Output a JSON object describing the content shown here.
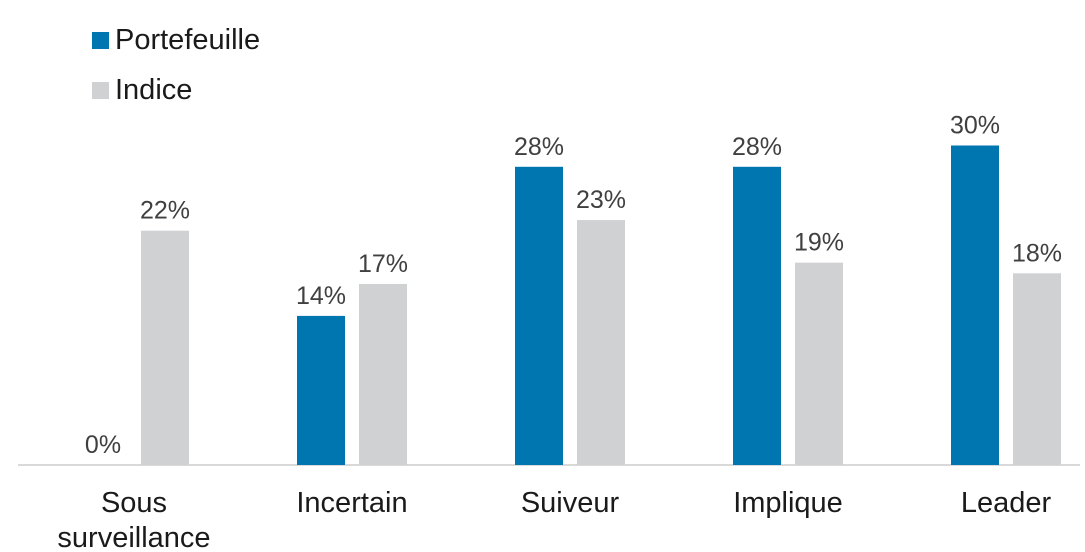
{
  "chart_data": {
    "type": "bar",
    "categories": [
      [
        "Sous",
        "surveillance"
      ],
      [
        "Incertain"
      ],
      [
        "Suiveur"
      ],
      [
        "Implique"
      ],
      [
        "Leader"
      ]
    ],
    "series": [
      {
        "name": "Portefeuille",
        "color": "#0076B1",
        "values": [
          0,
          14,
          28,
          28,
          30
        ],
        "labels": [
          "0%",
          "14%",
          "28%",
          "28%",
          "30%"
        ]
      },
      {
        "name": "Indice",
        "color": "#D0D1D3",
        "values": [
          22,
          17,
          23,
          19,
          18
        ],
        "labels": [
          "22%",
          "17%",
          "23%",
          "19%",
          "18%"
        ]
      }
    ],
    "ylim": [
      0,
      30
    ],
    "grid": false,
    "legend": "top-left"
  }
}
